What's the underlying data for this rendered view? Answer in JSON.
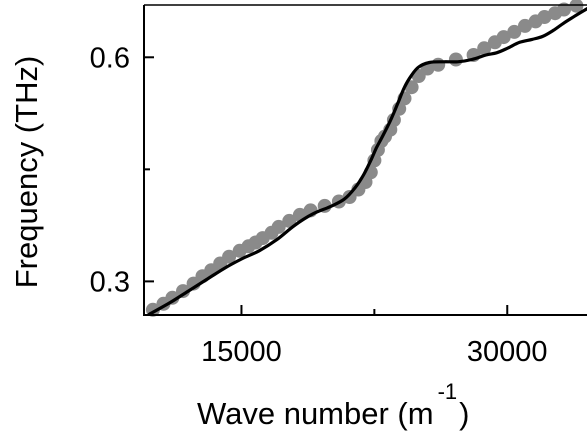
{
  "chart_data": {
    "type": "scatter",
    "title": "",
    "xlabel": "Wave number (m",
    "xlabel_superscript": "-1",
    "xlabel_close": ")",
    "ylabel": "Frequency (THz)",
    "xlim": [
      9500,
      34500
    ],
    "ylim": [
      0.255,
      0.67
    ],
    "xticks": [
      15000,
      30000
    ],
    "xtick_labels": [
      "15000",
      "30000"
    ],
    "yticks": [
      0.3,
      0.6
    ],
    "ytick_labels": [
      "0.3",
      "0.6"
    ],
    "x_minor_ticks": [
      22500
    ],
    "y_minor_ticks": [
      0.45
    ],
    "grid": false,
    "legend": "none",
    "series": [
      {
        "kind": "scatter",
        "color": "#8a8a8a",
        "x": [
          10000,
          10600,
          11100,
          11700,
          12300,
          12800,
          13300,
          13800,
          14300,
          14900,
          15400,
          15800,
          16200,
          16700,
          17100,
          17700,
          18300,
          18900,
          19700,
          20500,
          21100,
          21600,
          22000,
          22300,
          22500,
          22700,
          22900,
          23100,
          23400,
          23600,
          23900,
          24200,
          24600,
          25000,
          25500,
          26100,
          27100,
          28100,
          28700,
          29300,
          29800,
          30400,
          31000,
          31600,
          32100,
          32700,
          33200,
          33900
        ],
        "y": [
          0.262,
          0.27,
          0.278,
          0.287,
          0.297,
          0.307,
          0.315,
          0.324,
          0.333,
          0.341,
          0.347,
          0.352,
          0.358,
          0.365,
          0.373,
          0.381,
          0.389,
          0.395,
          0.401,
          0.407,
          0.413,
          0.423,
          0.433,
          0.446,
          0.462,
          0.476,
          0.488,
          0.494,
          0.503,
          0.516,
          0.531,
          0.545,
          0.56,
          0.575,
          0.585,
          0.59,
          0.597,
          0.603,
          0.612,
          0.62,
          0.627,
          0.634,
          0.642,
          0.648,
          0.654,
          0.659,
          0.664,
          0.669
        ]
      },
      {
        "kind": "line",
        "color": "#000000",
        "x": [
          9800,
          11000,
          12000,
          13000,
          14000,
          15000,
          16000,
          17000,
          18000,
          19000,
          20000,
          20800,
          21400,
          21900,
          22300,
          22600,
          23000,
          23400,
          23800,
          24200,
          24600,
          25000,
          25600,
          26400,
          27200,
          28000,
          28800,
          29400,
          30000,
          30700,
          31400,
          32000,
          32600,
          33200,
          33800,
          34500
        ],
        "y": [
          0.256,
          0.272,
          0.287,
          0.302,
          0.317,
          0.33,
          0.341,
          0.356,
          0.375,
          0.39,
          0.4,
          0.41,
          0.425,
          0.443,
          0.462,
          0.478,
          0.496,
          0.515,
          0.537,
          0.56,
          0.576,
          0.587,
          0.593,
          0.594,
          0.594,
          0.597,
          0.603,
          0.606,
          0.612,
          0.62,
          0.624,
          0.628,
          0.636,
          0.646,
          0.655,
          0.665
        ]
      }
    ]
  }
}
